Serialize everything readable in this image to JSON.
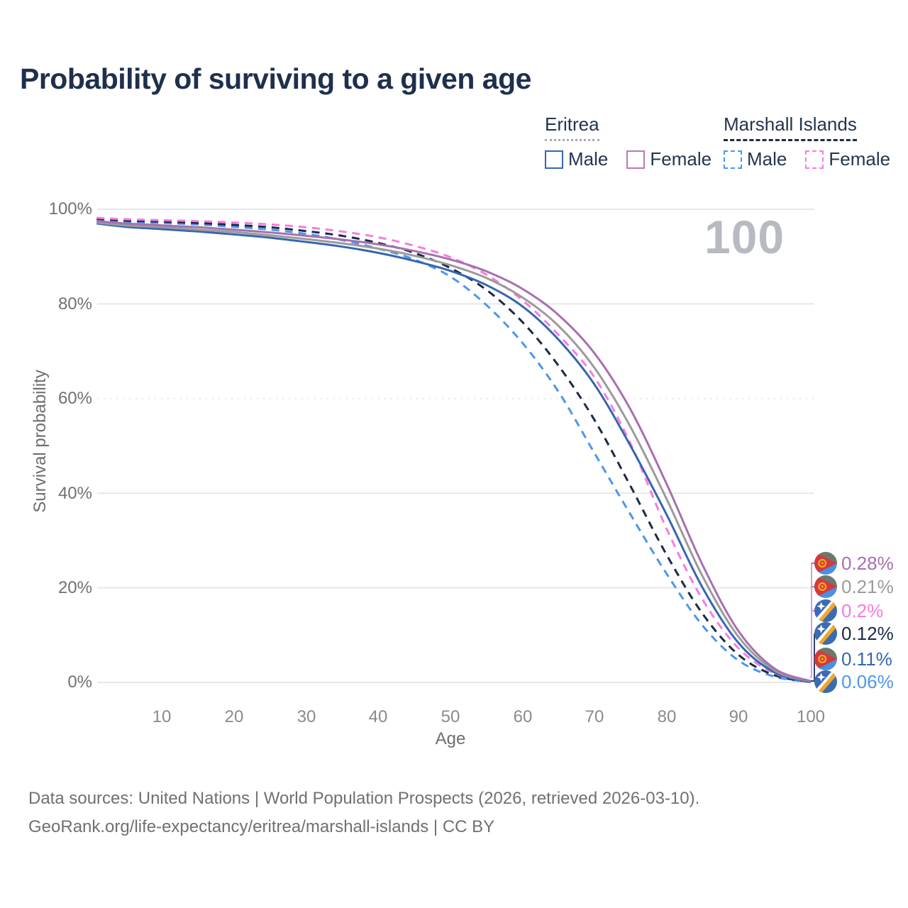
{
  "title": "Probability of surviving to a given age",
  "legend": {
    "groups": [
      {
        "label": "Eritrea",
        "line_style": "solid",
        "underline_color": "#a9a9a9",
        "items": [
          {
            "label": "Male",
            "color": "#3566b0",
            "dashed": false
          },
          {
            "label": "Female",
            "color": "#b879b8",
            "dashed": false
          }
        ]
      },
      {
        "label": "Marshall Islands",
        "line_style": "dashed",
        "underline_color": "#1b2a44",
        "items": [
          {
            "label": "Male",
            "color": "#4b96f0",
            "dashed": true
          },
          {
            "label": "Female",
            "color": "#f97be0",
            "dashed": true
          }
        ]
      }
    ]
  },
  "watermark": "100",
  "axes": {
    "y_title": "Survival probability",
    "y_ticks": [
      "100%",
      "80%",
      "60%",
      "40%",
      "20%",
      "0%"
    ],
    "x_ticks": [
      "10",
      "20",
      "30",
      "40",
      "50",
      "60",
      "70",
      "80",
      "90",
      "100"
    ],
    "x_title": "Age"
  },
  "chart_data": {
    "type": "line",
    "title": "Probability of surviving to a given age",
    "xlabel": "Age",
    "ylabel": "Survival probability",
    "xlim": [
      0,
      100
    ],
    "ylim": [
      0,
      100
    ],
    "grid": "horizontal",
    "legend_position": "top-right",
    "x": [
      1,
      5,
      10,
      15,
      20,
      25,
      30,
      35,
      40,
      45,
      50,
      55,
      60,
      65,
      70,
      75,
      80,
      85,
      90,
      95,
      100
    ],
    "series": [
      {
        "name": "Marshall Islands Male",
        "country": "Marshall Islands",
        "sex": "male",
        "color": "#4b96f0",
        "dashed": true,
        "end_label": "0.06%",
        "values": [
          97.8,
          97.4,
          97.1,
          96.8,
          96.3,
          95.7,
          94.8,
          93.5,
          91.7,
          89.4,
          85.8,
          79.8,
          71.8,
          61.5,
          48.5,
          35.5,
          23.0,
          12.0,
          4.6,
          1.2,
          0.06
        ]
      },
      {
        "name": "Marshall Islands",
        "country": "Marshall Islands",
        "sex": "both",
        "color": "#1b2a44",
        "dashed": true,
        "end_label": "0.12%",
        "values": [
          98.0,
          97.6,
          97.4,
          97.1,
          96.7,
          96.2,
          95.4,
          94.4,
          92.9,
          90.8,
          87.6,
          83.0,
          76.2,
          67.0,
          55.5,
          41.5,
          27.0,
          14.5,
          5.8,
          1.5,
          0.12
        ]
      },
      {
        "name": "Marshall Islands Female",
        "country": "Marshall Islands",
        "sex": "female",
        "color": "#f97be0",
        "dashed": true,
        "end_label": "0.2%",
        "values": [
          98.2,
          97.9,
          97.7,
          97.5,
          97.2,
          96.8,
          96.2,
          95.3,
          94.1,
          92.3,
          89.9,
          86.2,
          80.8,
          73.5,
          64.5,
          50.5,
          32.5,
          17.5,
          7.2,
          1.9,
          0.2
        ]
      },
      {
        "name": "Eritrea Male",
        "country": "Eritrea",
        "sex": "male",
        "color": "#3566b0",
        "dashed": false,
        "end_label": "0.11%",
        "values": [
          97.0,
          96.3,
          95.8,
          95.3,
          94.7,
          94.0,
          93.1,
          92.1,
          90.8,
          89.1,
          87.0,
          84.0,
          79.5,
          72.5,
          63.0,
          50.0,
          35.5,
          20.0,
          8.3,
          2.1,
          0.11
        ]
      },
      {
        "name": "Eritrea",
        "country": "Eritrea",
        "sex": "both",
        "color": "#9b9b9b",
        "dashed": false,
        "end_label": "0.21%",
        "values": [
          97.2,
          96.6,
          96.2,
          95.7,
          95.2,
          94.5,
          93.7,
          92.8,
          91.7,
          90.2,
          88.2,
          85.5,
          81.4,
          75.4,
          66.5,
          54.0,
          38.8,
          22.4,
          9.6,
          2.5,
          0.21
        ]
      },
      {
        "name": "Eritrea Female",
        "country": "Eritrea",
        "sex": "female",
        "color": "#a86fb0",
        "dashed": false,
        "end_label": "0.28%",
        "values": [
          97.5,
          97.0,
          96.6,
          96.2,
          95.7,
          95.1,
          94.4,
          93.6,
          92.6,
          91.2,
          89.4,
          86.9,
          83.2,
          77.7,
          69.6,
          57.7,
          42.0,
          24.8,
          10.8,
          2.9,
          0.28
        ]
      }
    ]
  },
  "end_labels": [
    {
      "value": "0.28%",
      "color": "#a86fb0",
      "flag": "eritrea"
    },
    {
      "value": "0.21%",
      "color": "#9b9b9b",
      "flag": "eritrea"
    },
    {
      "value": "0.2%",
      "color": "#f97be0",
      "flag": "marshall-islands"
    },
    {
      "value": "0.12%",
      "color": "#1b2a44",
      "flag": "marshall-islands"
    },
    {
      "value": "0.11%",
      "color": "#3566b0",
      "flag": "eritrea"
    },
    {
      "value": "0.06%",
      "color": "#4b96f0",
      "flag": "marshall-islands"
    }
  ],
  "footer": {
    "line1": "Data sources: United Nations | World Population Prospects (2026, retrieved 2026-03-10).",
    "line2": "GeoRank.org/life-expectancy/eritrea/marshall-islands | CC BY"
  }
}
